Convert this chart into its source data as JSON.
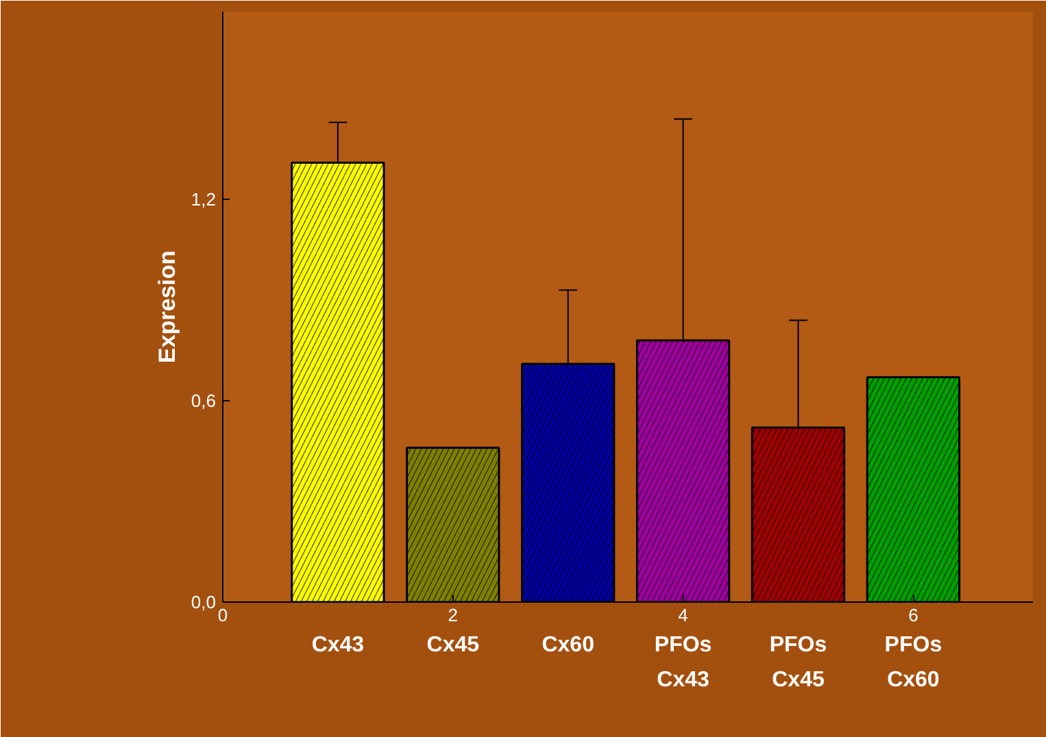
{
  "chart_data": {
    "type": "bar",
    "ylabel": "Expresion",
    "x": [
      1,
      2,
      3,
      4,
      5,
      6
    ],
    "values": [
      1.31,
      0.46,
      0.71,
      0.78,
      0.52,
      0.67
    ],
    "colors": [
      "#ffff00",
      "#808000",
      "#0000a0",
      "#a000a0",
      "#a00000",
      "#00a000"
    ],
    "errors": [
      [
        1.31,
        1.43
      ],
      null,
      [
        0.71,
        0.93
      ],
      [
        0.78,
        1.44
      ],
      [
        0.52,
        0.84
      ],
      null
    ],
    "xlim": [
      0,
      7.04
    ],
    "ylim": [
      0,
      1.76
    ],
    "xticks": [
      0,
      2,
      4,
      6
    ],
    "yticks": [
      {
        "value": 0,
        "label": "0,0"
      },
      {
        "value": 0.6,
        "label": "0,6"
      },
      {
        "value": 1.2,
        "label": "1,2"
      }
    ],
    "annotations": [
      "Cx43",
      "Cx45",
      "Cx60",
      "PFOs\nCx43",
      "PFOs\nCx45",
      "PFOs\nCx60"
    ],
    "grid": false
  }
}
